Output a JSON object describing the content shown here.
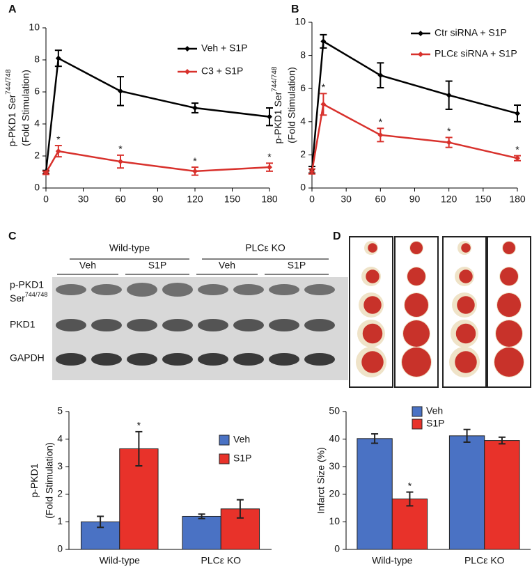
{
  "blot": {
    "groups": [
      "Wild-type",
      "PLCε KO"
    ],
    "treatments": [
      "Veh",
      "S1P",
      "Veh",
      "S1P"
    ],
    "rows": [
      {
        "label": "p-PKD1",
        "label2": "Ser",
        "label2_sup": "744/748"
      },
      {
        "label": "PKD1"
      },
      {
        "label": "GAPDH"
      }
    ]
  },
  "chart_data": [
    {
      "type": "line",
      "label": "A",
      "ylabel": "p-PKD1 Ser",
      "ylabel_sup": "744/748",
      "ylabel2": "(Fold Stimulation)",
      "x": [
        0,
        10,
        60,
        120,
        180
      ],
      "xlim": [
        0,
        180
      ],
      "xticks": [
        0,
        30,
        60,
        90,
        120,
        150,
        180
      ],
      "ylim": [
        0,
        10
      ],
      "yticks": [
        0,
        2,
        4,
        6,
        8,
        10
      ],
      "series": [
        {
          "name": "Veh + S1P",
          "color": "#000000",
          "values": [
            1.0,
            8.1,
            6.05,
            5.0,
            4.45
          ],
          "errors": [
            0.1,
            0.5,
            0.9,
            0.3,
            0.55
          ]
        },
        {
          "name": "C3 + S1P",
          "color": "#d8312c",
          "values": [
            0.95,
            2.3,
            1.65,
            1.05,
            1.3
          ],
          "errors": [
            0.1,
            0.35,
            0.4,
            0.25,
            0.25
          ],
          "sig_labels": [
            null,
            "*",
            "*",
            "*",
            "*"
          ]
        }
      ]
    },
    {
      "type": "line",
      "label": "B",
      "ylabel": "p-PKD1 Ser",
      "ylabel_sup": "744/748",
      "ylabel2": "(Fold Stimulation)",
      "x": [
        0,
        10,
        60,
        120,
        180
      ],
      "xlim": [
        0,
        180
      ],
      "xticks": [
        0,
        30,
        60,
        90,
        120,
        150,
        180
      ],
      "ylim": [
        0,
        10
      ],
      "yticks": [
        0,
        2,
        4,
        6,
        8,
        10
      ],
      "series": [
        {
          "name": "Ctr siRNA + S1P",
          "color": "#000000",
          "values": [
            1.1,
            8.85,
            6.8,
            5.6,
            4.5
          ],
          "errors": [
            0.2,
            0.4,
            0.75,
            0.85,
            0.5
          ]
        },
        {
          "name": "PLCε siRNA + S1P",
          "color": "#d8312c",
          "values": [
            1.0,
            5.05,
            3.2,
            2.75,
            1.8
          ],
          "errors": [
            0.15,
            0.65,
            0.4,
            0.3,
            0.15
          ],
          "sig_labels": [
            null,
            "*",
            "*",
            "*",
            "*"
          ]
        }
      ]
    },
    {
      "type": "bar",
      "label": "C",
      "ylabel": "p-PKD1",
      "ylabel2": "(Fold Stimulation)",
      "categories": [
        "Wild-type",
        "PLCε KO"
      ],
      "ylim": [
        0,
        5
      ],
      "yticks": [
        0,
        1,
        2,
        3,
        4,
        5
      ],
      "series": [
        {
          "name": "Veh",
          "color": "#4a72c4",
          "values": [
            1.0,
            1.2
          ],
          "errors": [
            0.2,
            0.08
          ]
        },
        {
          "name": "S1P",
          "color": "#e8322a",
          "values": [
            3.65,
            1.47
          ],
          "errors": [
            0.62,
            0.33
          ],
          "sig_labels": [
            "*",
            null
          ]
        }
      ]
    },
    {
      "type": "bar",
      "label": "D",
      "ylabel": "Infarct Size (%)",
      "categories": [
        "Wild-type",
        "PLCε KO"
      ],
      "ylim": [
        0,
        50
      ],
      "yticks": [
        0,
        10,
        20,
        30,
        40,
        50
      ],
      "series": [
        {
          "name": "Veh",
          "color": "#4a72c4",
          "values": [
            40.2,
            41.2
          ],
          "errors": [
            1.7,
            2.3
          ]
        },
        {
          "name": "S1P",
          "color": "#e8322a",
          "values": [
            18.3,
            39.5
          ],
          "errors": [
            2.5,
            1.2
          ],
          "sig_labels": [
            "*",
            null
          ]
        }
      ]
    }
  ]
}
